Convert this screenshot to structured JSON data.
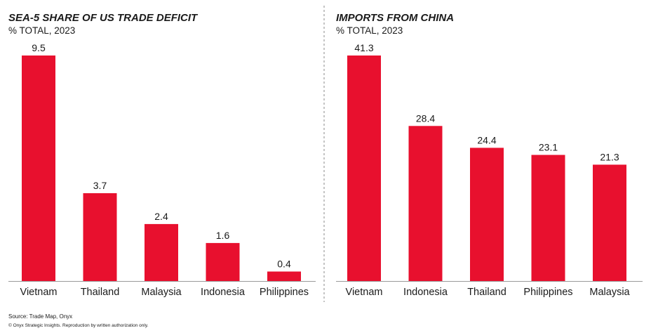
{
  "chart_data": [
    {
      "type": "bar",
      "title": "SEA-5 SHARE OF US TRADE DEFICIT",
      "subtitle": "% TOTAL, 2023",
      "categories": [
        "Vietnam",
        "Thailand",
        "Malaysia",
        "Indonesia",
        "Philippines"
      ],
      "values": [
        9.5,
        3.7,
        2.4,
        1.6,
        0.4
      ],
      "value_labels": [
        "9.5",
        "3.7",
        "2.4",
        "1.6",
        "0.4"
      ],
      "ylim": [
        0,
        9.5
      ],
      "grid": false,
      "legend": "none",
      "bar_color": "#e8102e"
    },
    {
      "type": "bar",
      "title": "IMPORTS FROM CHINA",
      "subtitle": "% TOTAL, 2023",
      "categories": [
        "Vietnam",
        "Indonesia",
        "Thailand",
        "Philippines",
        "Malaysia"
      ],
      "values": [
        41.3,
        28.4,
        24.4,
        23.1,
        21.3
      ],
      "value_labels": [
        "41.3",
        "28.4",
        "24.4",
        "23.1",
        "21.3"
      ],
      "ylim": [
        0,
        41.3
      ],
      "grid": false,
      "legend": "none",
      "bar_color": "#e8102e"
    }
  ],
  "footer": {
    "source": "Source: Trade Map, Onyx",
    "copyright": "© Onyx Strategic Insights. Reproduction by written authorization only."
  },
  "colors": {
    "bar": "#e8102e",
    "axis": "#9a9a9a",
    "divider": "#8a8a8a",
    "text": "#1a1a1a"
  }
}
